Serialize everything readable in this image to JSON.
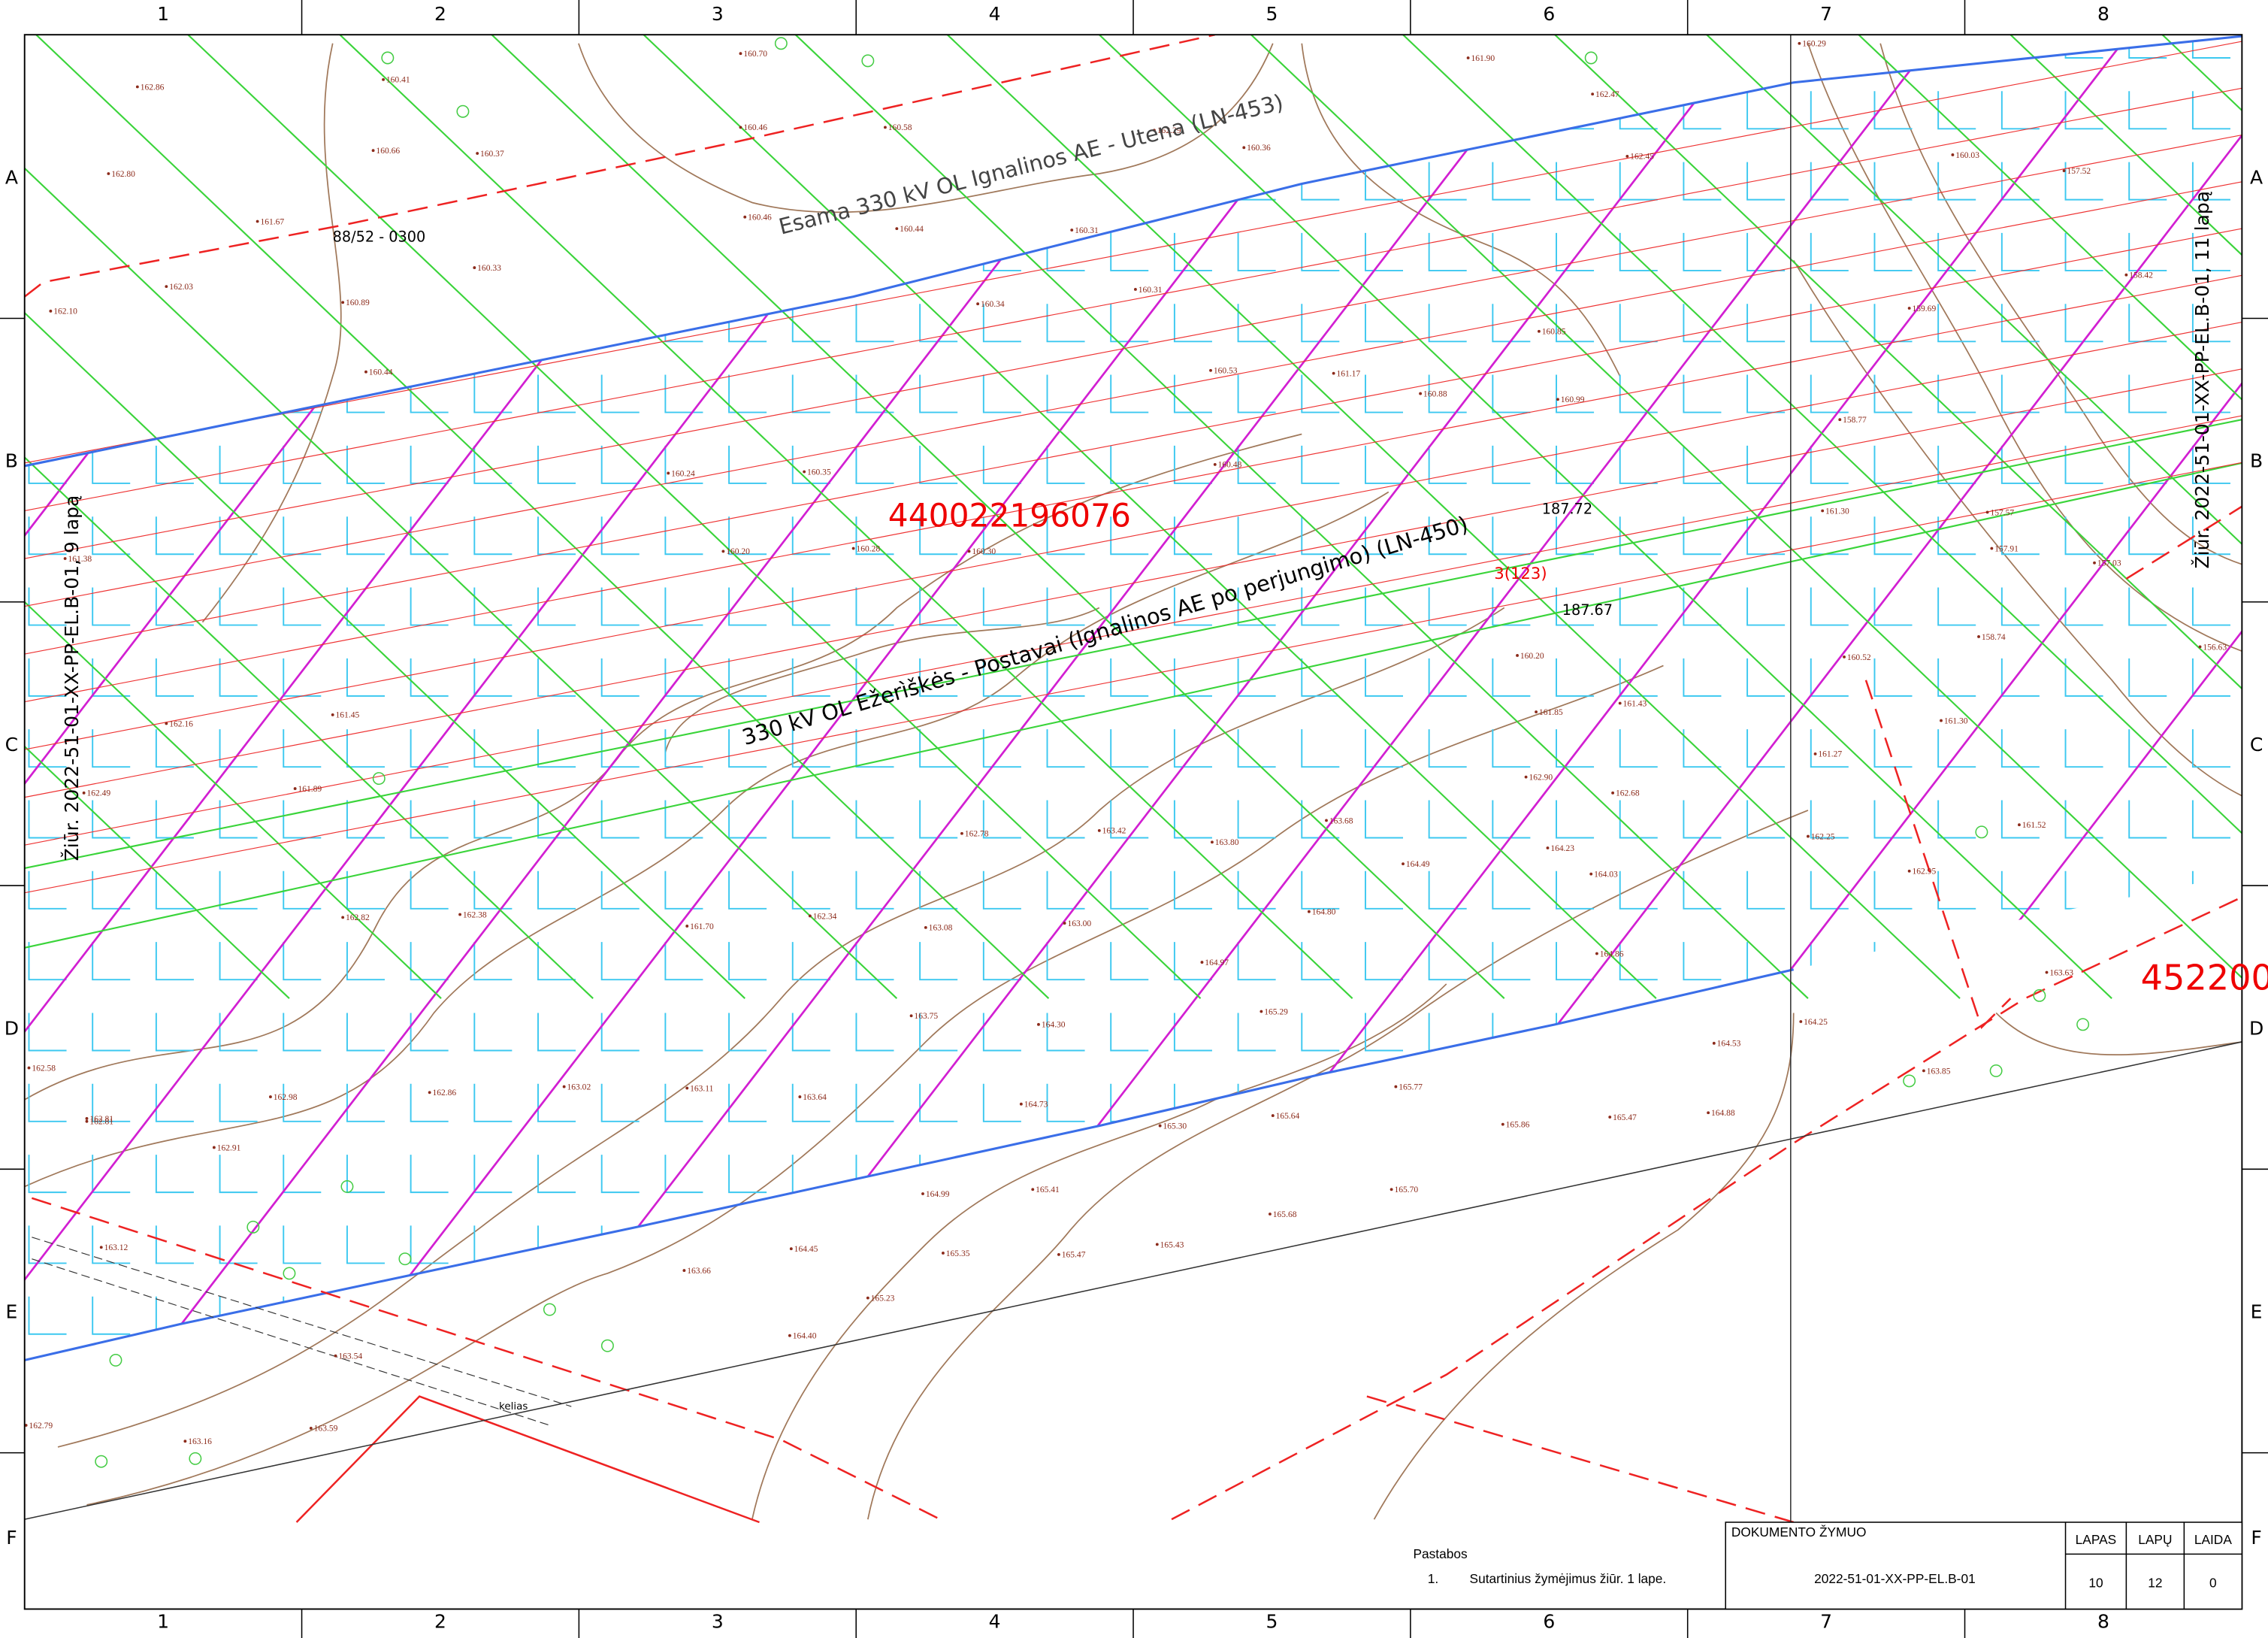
{
  "grid": {
    "columns": [
      "1",
      "2",
      "3",
      "4",
      "5",
      "6",
      "7",
      "8"
    ],
    "rows": [
      "A",
      "B",
      "C",
      "D",
      "E",
      "F"
    ]
  },
  "labels": {
    "line_existing": "Esama 330 kV OL Ignalinos AE - Utena (LN-453)",
    "line_new": "330 kV OL Ežerìškės - Postavai (Ignalinos AE po perjungimo) (LN-450)",
    "parcel_1": "440022196076",
    "parcel_2": "452200",
    "parcel_code": "88/52 - 0300",
    "see_left": "Žiūr. 2022-51-01-XX-PP-EL.B-01, 9 lapą",
    "see_right": "Žiūr. 2022-51-01-XX-PP-EL.B-01, 11 lapą",
    "point_a": "187.72",
    "point_b": "187.67",
    "tower": "3(123)",
    "road": "kelias"
  },
  "spot_heights": [
    "162.86",
    "162.80",
    "161.67",
    "162.03",
    "162.10",
    "160.41",
    "160.66",
    "160.37",
    "160.33",
    "160.89",
    "160.44",
    "160.46",
    "160.58",
    "160.70",
    "160.46",
    "160.44",
    "160.34",
    "160.31",
    "160.31",
    "160.53",
    "161.17",
    "160.88",
    "160.85",
    "160.99",
    "160.48",
    "161.38",
    "162.16",
    "161.45",
    "162.49",
    "161.89",
    "160.24",
    "160.20",
    "160.35",
    "160.28",
    "160.30",
    "161.30",
    "162.82",
    "162.38",
    "161.70",
    "162.34",
    "163.08",
    "163.00",
    "162.78",
    "163.42",
    "163.80",
    "163.68",
    "164.49",
    "164.80",
    "164.97",
    "165.29",
    "165.77",
    "165.64",
    "165.30",
    "164.73",
    "164.30",
    "163.75",
    "163.64",
    "163.11",
    "163.02",
    "162.86",
    "162.81",
    "162.98",
    "162.58",
    "162.81",
    "162.91",
    "163.12",
    "163.16",
    "162.79",
    "163.54",
    "163.59",
    "163.66",
    "164.45",
    "164.40",
    "165.23",
    "165.35",
    "165.47",
    "165.41",
    "164.99",
    "165.43",
    "165.68",
    "165.70",
    "165.86",
    "165.47",
    "164.88",
    "164.53",
    "164.25",
    "163.85",
    "163.63",
    "162.95",
    "161.30",
    "161.52",
    "161.85",
    "161.43",
    "162.90",
    "162.68",
    "164.03",
    "164.23",
    "164.86",
    "160.52",
    "161.27",
    "162.25",
    "158.74",
    "158.42",
    "158.77",
    "157.57",
    "157.91",
    "157.03",
    "156.63",
    "157.52",
    "159.69",
    "160.03",
    "160.29",
    "162.47",
    "162.45",
    "161.90",
    "162.29",
    "160.36",
    "160.20"
  ],
  "notes": {
    "title": "Pastabos",
    "items": [
      {
        "num": "1.",
        "text": "Sutartinius žymėjimus žiūr. 1 lape."
      }
    ]
  },
  "title_block": {
    "doc_label": "DOKUMENTO ŽYMUO",
    "doc_code": "2022-51-01-XX-PP-EL.B-01",
    "headers": [
      "LAPAS",
      "LAPŲ",
      "LAIDA"
    ],
    "values": [
      "10",
      "12",
      "0"
    ]
  }
}
